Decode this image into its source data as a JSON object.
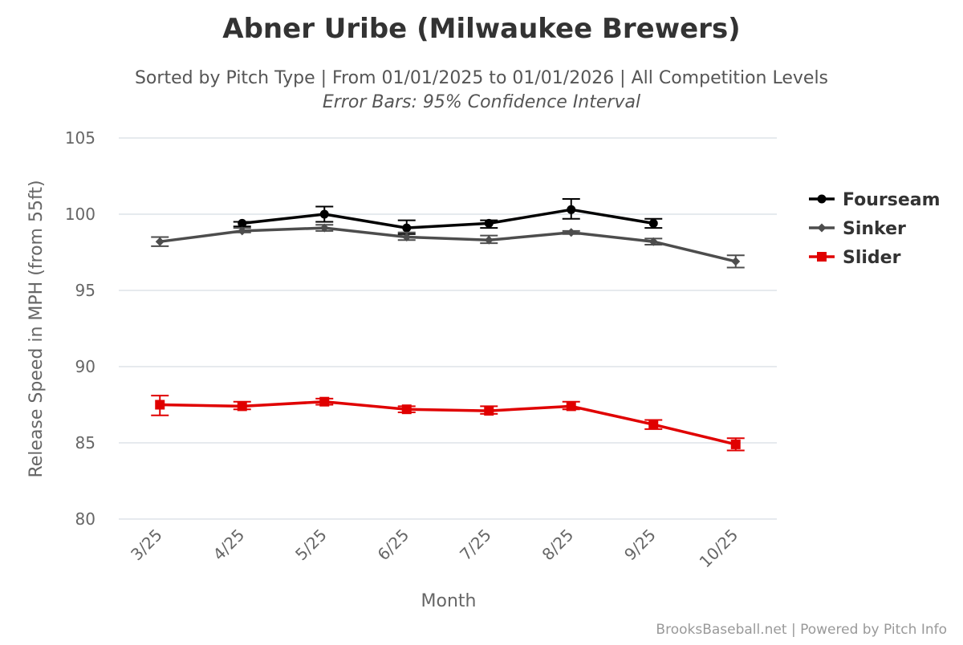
{
  "chart_data": {
    "type": "line",
    "title": "Abner Uribe (Milwaukee Brewers)",
    "subtitle": "Sorted by Pitch Type | From 01/01/2025 to 01/01/2026 | All Competition Levels",
    "subtitle2": "Error Bars: 95% Confidence Interval",
    "xlabel": "Month",
    "ylabel": "Release Speed in MPH (from 55ft)",
    "categories": [
      "3/25",
      "4/25",
      "5/25",
      "6/25",
      "7/25",
      "8/25",
      "9/25",
      "10/25"
    ],
    "ylim": [
      80,
      105
    ],
    "yticks": [
      80,
      85,
      90,
      95,
      100,
      105
    ],
    "grid": true,
    "legend_position": "right",
    "series": [
      {
        "name": "Fourseam",
        "color": "#000000",
        "marker": "circle",
        "values": [
          null,
          99.4,
          100.0,
          99.1,
          99.4,
          100.3,
          99.4,
          null
        ],
        "error_low": [
          null,
          99.2,
          99.5,
          98.7,
          99.1,
          99.7,
          99.1,
          null
        ],
        "error_high": [
          null,
          99.5,
          100.5,
          99.6,
          99.6,
          101.0,
          99.7,
          null
        ]
      },
      {
        "name": "Sinker",
        "color": "#4d4d4d",
        "marker": "diamond",
        "values": [
          98.2,
          98.9,
          99.1,
          98.5,
          98.3,
          98.8,
          98.2,
          96.9
        ],
        "error_low": [
          97.9,
          98.8,
          98.9,
          98.3,
          98.1,
          98.7,
          98.0,
          96.5
        ],
        "error_high": [
          98.5,
          99.1,
          99.3,
          98.8,
          98.6,
          98.9,
          98.4,
          97.3
        ]
      },
      {
        "name": "Slider",
        "color": "#e00000",
        "marker": "square",
        "values": [
          87.5,
          87.4,
          87.7,
          87.2,
          87.1,
          87.4,
          86.2,
          84.9
        ],
        "error_low": [
          86.8,
          87.2,
          87.5,
          87.0,
          86.9,
          87.2,
          85.9,
          84.5
        ],
        "error_high": [
          88.1,
          87.7,
          87.9,
          87.4,
          87.4,
          87.7,
          86.5,
          85.3
        ]
      }
    ],
    "credits": "BrooksBaseball.net | Powered by Pitch Info"
  }
}
